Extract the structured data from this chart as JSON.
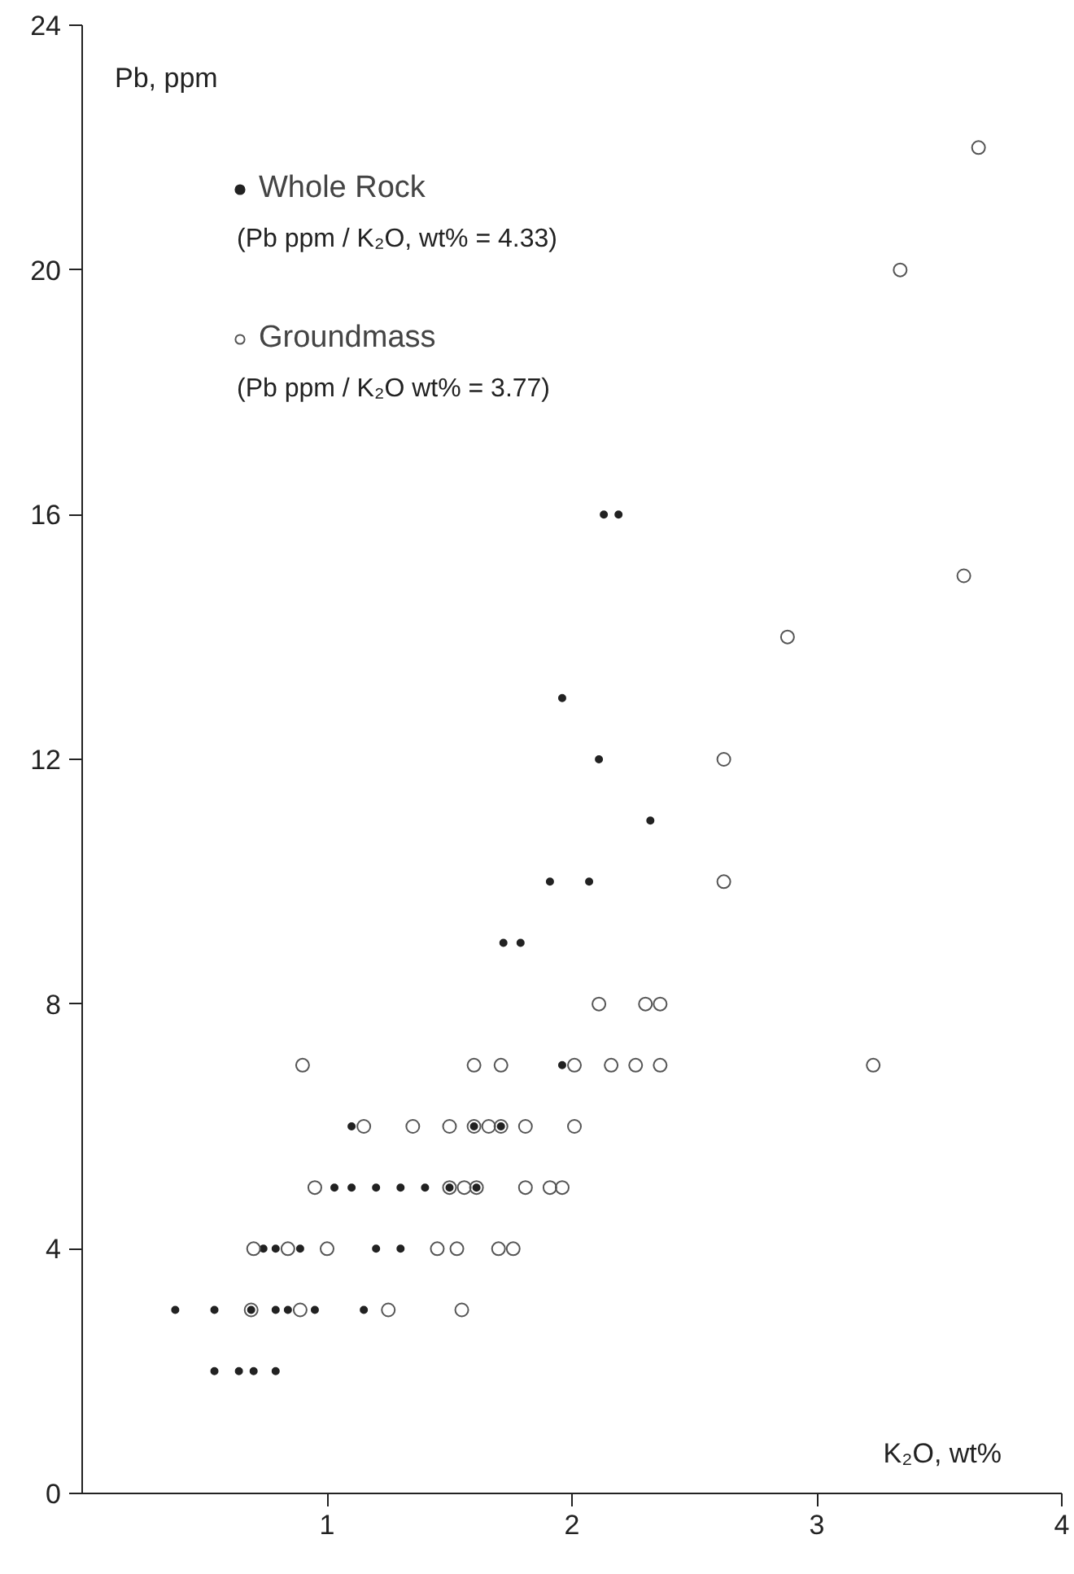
{
  "chart_data": {
    "type": "scatter",
    "xlabel": "K₂O, wt%",
    "ylabel": "Pb, ppm",
    "xlim": [
      0,
      4
    ],
    "xticks": [
      1,
      2,
      3,
      4
    ],
    "ylim": [
      0,
      24
    ],
    "yticks": [
      0,
      4,
      8,
      12,
      16,
      20,
      24
    ],
    "grid": false,
    "legend": "top left",
    "marker": "circle",
    "series": [
      {
        "name": "Whole Rock",
        "color": "#222222",
        "x": [
          0.54,
          0.64,
          0.7,
          0.79,
          0.38,
          0.54,
          0.69,
          0.79,
          0.84,
          0.95,
          1.15,
          0.74,
          0.79,
          0.89,
          1.2,
          1.3,
          1.03,
          1.1,
          1.2,
          1.3,
          1.4,
          1.5,
          1.61,
          1.1,
          1.6,
          1.71,
          1.96,
          1.72,
          1.79,
          1.91,
          2.07,
          2.32,
          2.11,
          1.96,
          2.13,
          2.19
        ],
        "values": [
          2,
          2,
          2,
          2,
          3,
          3,
          3,
          3,
          3,
          3,
          3,
          4,
          4,
          4,
          4,
          4,
          5,
          5,
          5,
          5,
          5,
          5,
          5,
          6,
          6,
          6,
          7,
          9,
          9,
          10,
          10,
          11,
          12,
          13,
          16,
          16
        ]
      },
      {
        "name": "Groundmass",
        "color": "#555555",
        "x": [
          0.69,
          0.89,
          1.25,
          1.55,
          0.7,
          0.84,
          1.0,
          1.45,
          1.53,
          1.7,
          1.76,
          0.95,
          1.5,
          1.56,
          1.61,
          1.81,
          1.91,
          1.96,
          1.15,
          1.35,
          1.5,
          1.6,
          1.66,
          1.71,
          1.81,
          2.01,
          0.9,
          1.6,
          1.71,
          2.01,
          2.16,
          2.26,
          2.36,
          3.23,
          2.11,
          2.3,
          2.36,
          2.62,
          2.62,
          2.88,
          3.6,
          3.34,
          3.66
        ],
        "values": [
          3,
          3,
          3,
          3,
          4,
          4,
          4,
          4,
          4,
          4,
          4,
          5,
          5,
          5,
          5,
          5,
          5,
          5,
          6,
          6,
          6,
          6,
          6,
          6,
          6,
          6,
          7,
          7,
          7,
          7,
          7,
          7,
          7,
          7,
          8,
          8,
          8,
          10,
          12,
          14,
          15,
          20,
          22
        ]
      }
    ],
    "annotations": [
      "(Pb ppm / K₂O, wt% = 4.33)",
      "(Pb ppm / K₂O wt% = 3.77)"
    ]
  }
}
